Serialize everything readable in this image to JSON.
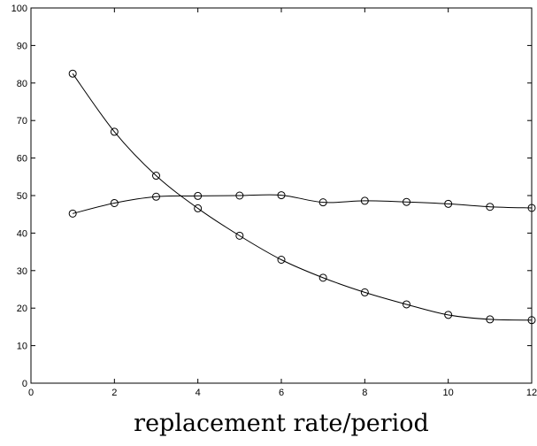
{
  "chart_data": {
    "type": "line",
    "title": "",
    "xlabel": "replacement rate/period",
    "ylabel": "",
    "xlim": [
      0,
      12
    ],
    "ylim": [
      0,
      100
    ],
    "x_ticks": [
      0,
      2,
      4,
      6,
      8,
      10,
      12
    ],
    "y_ticks": [
      0,
      10,
      20,
      30,
      40,
      50,
      60,
      70,
      80,
      90,
      100
    ],
    "grid": false,
    "legend": "none",
    "marker": "open-circle",
    "line_color": "#000000",
    "series": [
      {
        "x": [
          1,
          2,
          3,
          4,
          5,
          6,
          7,
          8,
          9,
          10,
          11,
          12
        ],
        "values": [
          82.5,
          67.0,
          55.3,
          46.6,
          39.3,
          32.9,
          28.1,
          24.2,
          21.0,
          18.2,
          17.0,
          16.8
        ]
      },
      {
        "x": [
          1,
          2,
          3,
          4,
          5,
          6,
          7,
          8,
          9,
          10,
          11,
          12
        ],
        "values": [
          45.2,
          48.0,
          49.7,
          49.9,
          50.0,
          50.1,
          48.2,
          48.6,
          48.3,
          47.8,
          47.0,
          46.7
        ]
      }
    ]
  }
}
